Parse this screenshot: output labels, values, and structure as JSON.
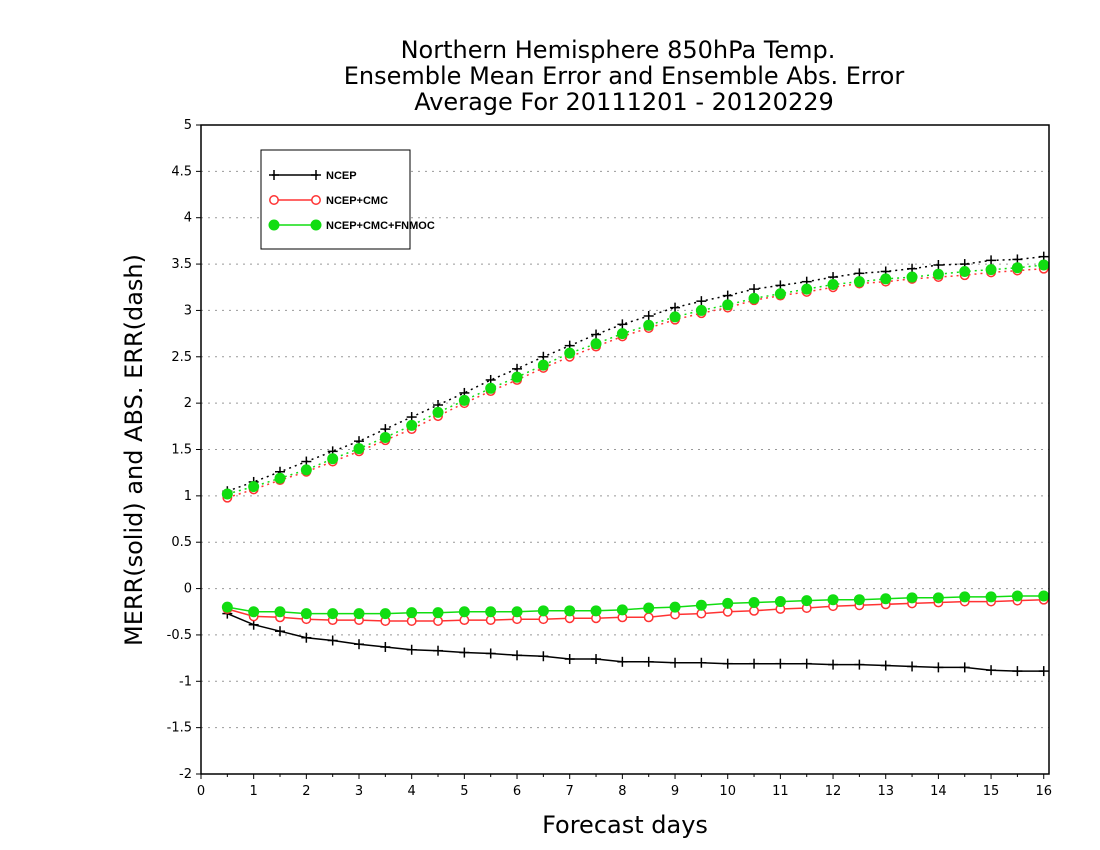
{
  "chart_data": {
    "type": "line",
    "title_lines": [
      "Northern Hemisphere 850hPa Temp.",
      "Ensemble Mean Error and Ensemble Abs. Error",
      "Average For 20111201 - 20120229"
    ],
    "xlabel": "Forecast days",
    "ylabel": "MERR(solid) and ABS. ERR(dash)",
    "xlim": [
      0,
      16.1
    ],
    "ylim": [
      -2,
      5
    ],
    "xticks": [
      "0",
      "1",
      "2",
      "3",
      "4",
      "5",
      "6",
      "7",
      "8",
      "9",
      "10",
      "11",
      "12",
      "13",
      "14",
      "15",
      "16"
    ],
    "yticks": [
      "5",
      "4.5",
      "4",
      "3.5",
      "3",
      "2.5",
      "2",
      "1.5",
      "1",
      "0.5",
      "0",
      "-0.5",
      "-1",
      "-1.5",
      "-2"
    ],
    "grid": true,
    "legend_position": "top-left",
    "x": [
      0.5,
      1,
      1.5,
      2,
      2.5,
      3,
      3.5,
      4,
      4.5,
      5,
      5.5,
      6,
      6.5,
      7,
      7.5,
      8,
      8.5,
      9,
      9.5,
      10,
      10.5,
      11,
      11.5,
      12,
      12.5,
      13,
      13.5,
      14,
      14.5,
      15,
      15.5,
      16
    ],
    "series": [
      {
        "name": "NCEP",
        "color": "#000000",
        "marker": "plus",
        "merr": [
          -0.27,
          -0.39,
          -0.46,
          -0.53,
          -0.56,
          -0.6,
          -0.63,
          -0.66,
          -0.67,
          -0.69,
          -0.7,
          -0.72,
          -0.73,
          -0.76,
          -0.76,
          -0.79,
          -0.79,
          -0.8,
          -0.8,
          -0.81,
          -0.81,
          -0.81,
          -0.81,
          -0.82,
          -0.82,
          -0.83,
          -0.84,
          -0.85,
          -0.85,
          -0.88,
          -0.89,
          -0.89
        ],
        "abs_err": [
          1.05,
          1.15,
          1.26,
          1.37,
          1.48,
          1.59,
          1.72,
          1.85,
          1.98,
          2.11,
          2.25,
          2.37,
          2.5,
          2.62,
          2.74,
          2.85,
          2.94,
          3.03,
          3.1,
          3.16,
          3.23,
          3.27,
          3.31,
          3.36,
          3.4,
          3.42,
          3.45,
          3.49,
          3.5,
          3.54,
          3.55,
          3.58
        ]
      },
      {
        "name": "NCEP+CMC",
        "color": "#ff3333",
        "marker": "open-circle",
        "merr": [
          -0.22,
          -0.3,
          -0.31,
          -0.33,
          -0.34,
          -0.34,
          -0.35,
          -0.35,
          -0.35,
          -0.34,
          -0.34,
          -0.33,
          -0.33,
          -0.32,
          -0.32,
          -0.31,
          -0.31,
          -0.28,
          -0.27,
          -0.25,
          -0.24,
          -0.22,
          -0.21,
          -0.19,
          -0.18,
          -0.17,
          -0.16,
          -0.15,
          -0.14,
          -0.14,
          -0.13,
          -0.12
        ],
        "abs_err": [
          0.98,
          1.07,
          1.17,
          1.26,
          1.37,
          1.48,
          1.6,
          1.72,
          1.86,
          2.0,
          2.13,
          2.25,
          2.38,
          2.5,
          2.61,
          2.72,
          2.81,
          2.9,
          2.97,
          3.03,
          3.11,
          3.16,
          3.2,
          3.25,
          3.29,
          3.31,
          3.34,
          3.36,
          3.38,
          3.41,
          3.43,
          3.45
        ]
      },
      {
        "name": "NCEP+CMC+FNMOC",
        "color": "#11dd11",
        "marker": "filled-circle",
        "merr": [
          -0.2,
          -0.25,
          -0.25,
          -0.27,
          -0.27,
          -0.27,
          -0.27,
          -0.26,
          -0.26,
          -0.25,
          -0.25,
          -0.25,
          -0.24,
          -0.24,
          -0.24,
          -0.23,
          -0.21,
          -0.2,
          -0.18,
          -0.16,
          -0.15,
          -0.14,
          -0.13,
          -0.12,
          -0.12,
          -0.11,
          -0.1,
          -0.1,
          -0.09,
          -0.09,
          -0.08,
          -0.08
        ],
        "abs_err": [
          1.02,
          1.1,
          1.19,
          1.28,
          1.4,
          1.51,
          1.63,
          1.76,
          1.9,
          2.03,
          2.16,
          2.28,
          2.41,
          2.54,
          2.64,
          2.75,
          2.84,
          2.93,
          3.0,
          3.06,
          3.13,
          3.18,
          3.23,
          3.28,
          3.31,
          3.34,
          3.36,
          3.39,
          3.42,
          3.44,
          3.46,
          3.49
        ]
      }
    ]
  }
}
